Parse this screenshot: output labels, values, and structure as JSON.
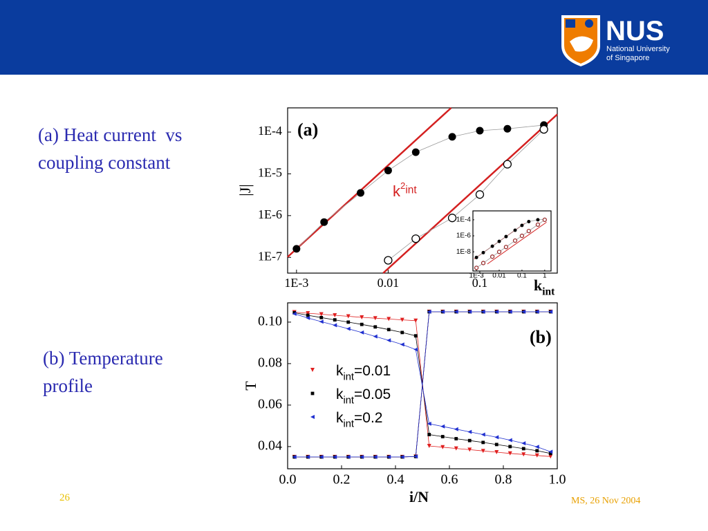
{
  "header": {
    "logo_text": "NUS",
    "logo_line1": "National University",
    "logo_line2": "of Singapore"
  },
  "slide": {
    "text_a_line1": "(a) Heat current  vs",
    "text_a_line2": "coupling constant",
    "text_b_line1": "(b) Temperature",
    "text_b_line2": "profile"
  },
  "footer": {
    "page": "26",
    "event": "MS, 26 Nov 2004"
  },
  "chart_data": [
    {
      "type": "line",
      "log_x": true,
      "log_y": true,
      "xlim": [
        0.0008,
        0.7
      ],
      "ylim": [
        4.2e-08,
        0.00038
      ],
      "xticks": [
        {
          "value": 0.001,
          "label": "1E-3"
        },
        0.01,
        0.1
      ],
      "yticks": [
        {
          "value": 1e-07,
          "label": "1E-7"
        },
        {
          "value": 1e-06,
          "label": "1E-6"
        },
        {
          "value": 1e-05,
          "label": "1E-5"
        },
        {
          "value": 0.0001,
          "label": "1E-4"
        }
      ],
      "ylabel": "|J|",
      "xlabel": {
        "base": "k",
        "sub": "int"
      },
      "annotation": "(a)",
      "fit_label": {
        "base": "k",
        "sup": "2",
        "sub": "int"
      },
      "x": [
        0.001,
        0.002,
        0.005,
        0.01,
        0.02,
        0.05,
        0.1,
        0.2,
        0.5
      ],
      "series": [
        {
          "color": "#000000",
          "line_color": "#999999",
          "marker": "filled-circle",
          "values": [
            1.6e-07,
            7e-07,
            3.5e-06,
            1.2e-05,
            3.3e-05,
            7.7e-05,
            0.000108,
            0.00012,
            0.000147
          ]
        },
        {
          "color": "#000000",
          "line_color": "#999999",
          "marker": "open-circle",
          "values": [
            null,
            null,
            null,
            8.5e-08,
            2.8e-07,
            8.8e-07,
            3.2e-06,
            1.7e-05,
            0.000116
          ]
        }
      ],
      "fit_lines": [
        {
          "color": "#d42020",
          "x": [
            0.0008,
            0.0487
          ],
          "values": [
            1.024e-07,
            0.00038
          ]
        },
        {
          "color": "#d42020",
          "x": [
            0.00882,
            0.7
          ],
          "values": [
            4.2e-08,
            0.000265
          ]
        }
      ]
    },
    {
      "type": "line",
      "log_x": true,
      "log_y": true,
      "xlim": [
        0.0007,
        1.9
      ],
      "ylim": [
        4e-11,
        0.0013
      ],
      "xticks": [
        {
          "value": 0.001,
          "label": "1E-3"
        },
        0.01,
        0.1,
        1
      ],
      "yticks": [
        {
          "value": 1e-08,
          "label": "1E-8"
        },
        {
          "value": 1e-06,
          "label": "1E-6"
        },
        {
          "value": 0.0001,
          "label": "1E-4"
        }
      ],
      "x": [
        0.001,
        0.002,
        0.005,
        0.01,
        0.02,
        0.05,
        0.1,
        0.2,
        0.5,
        1
      ],
      "series": [
        {
          "color": "#000000",
          "line_color": "#999999",
          "marker": "filled-circle",
          "values": [
            2e-09,
            8e-09,
            5e-08,
            2e-07,
            8e-07,
            5e-06,
            2e-05,
            6e-05,
            0.0001,
            0.00011
          ]
        },
        {
          "color": "#9a3030",
          "line_color": "#999999",
          "marker": "open-circle",
          "values": [
            1e-10,
            4e-10,
            2.5e-09,
            1e-08,
            4e-08,
            2.5e-07,
            1e-06,
            4e-06,
            2.5e-05,
            0.0001
          ]
        }
      ],
      "fit_lines": [
        {
          "color": "#d42020",
          "x": [
            0.0008,
            0.13
          ],
          "values": [
            1.3e-09,
            3.4e-05
          ]
        },
        {
          "color": "#d42020",
          "x": [
            0.003,
            1.2
          ],
          "values": [
            3e-10,
            5e-05
          ]
        }
      ]
    },
    {
      "type": "line",
      "xlim": [
        0,
        1
      ],
      "ylim": [
        0.0293,
        0.1093
      ],
      "xticks": [
        {
          "value": 0,
          "label": "0.0"
        },
        0.2,
        0.4,
        0.6,
        0.8,
        {
          "value": 1,
          "label": "1.0"
        }
      ],
      "yticks": [
        0.04,
        0.06,
        0.08,
        {
          "value": 0.1,
          "label": "0.10"
        }
      ],
      "ylabel": "T",
      "xlabel": "i/N",
      "annotation": "(b)",
      "x": [
        0.025,
        0.075,
        0.125,
        0.175,
        0.225,
        0.275,
        0.325,
        0.375,
        0.425,
        0.475,
        0.525,
        0.575,
        0.625,
        0.675,
        0.725,
        0.775,
        0.825,
        0.875,
        0.925,
        0.975
      ],
      "series": [
        {
          "name": {
            "base": "k",
            "sub": "int",
            "rest": "=0.01"
          },
          "color": "#e02020",
          "marker": "triangle-down",
          "values": [
            0.1048,
            0.1043,
            0.1038,
            0.1033,
            0.1028,
            0.1023,
            0.1019,
            0.1015,
            0.1011,
            0.1007,
            0.0403,
            0.0397,
            0.0391,
            0.0385,
            0.0379,
            0.0373,
            0.0367,
            0.0362,
            0.0357,
            0.0352
          ],
          "values_2": [
            0.035,
            0.035,
            0.035,
            0.035,
            0.035,
            0.035,
            0.035,
            0.035,
            0.035,
            0.0352,
            0.105,
            0.105,
            0.105,
            0.105,
            0.105,
            0.105,
            0.105,
            0.105,
            0.105,
            0.105
          ]
        },
        {
          "name": {
            "base": "k",
            "sub": "int",
            "rest": "=0.05"
          },
          "color": "#000000",
          "marker": "square",
          "values": [
            0.1045,
            0.1033,
            0.1022,
            0.1011,
            0.1,
            0.0989,
            0.0977,
            0.0964,
            0.095,
            0.0934,
            0.0458,
            0.0448,
            0.0438,
            0.0429,
            0.042,
            0.041,
            0.04,
            0.039,
            0.038,
            0.0367
          ],
          "values_2": [
            0.035,
            0.035,
            0.035,
            0.035,
            0.035,
            0.035,
            0.035,
            0.035,
            0.035,
            0.0352,
            0.105,
            0.105,
            0.105,
            0.105,
            0.105,
            0.105,
            0.105,
            0.105,
            0.105,
            0.105
          ]
        },
        {
          "name": {
            "base": "k",
            "sub": "int",
            "rest": "=0.2"
          },
          "color": "#2030d0",
          "marker": "triangle-left",
          "values": [
            0.104,
            0.102,
            0.1002,
            0.0985,
            0.0968,
            0.095,
            0.0931,
            0.0912,
            0.0892,
            0.0868,
            0.051,
            0.0497,
            0.0484,
            0.0471,
            0.0458,
            0.0445,
            0.0431,
            0.0416,
            0.0399,
            0.0375
          ],
          "values_2": [
            0.035,
            0.035,
            0.035,
            0.035,
            0.035,
            0.035,
            0.035,
            0.035,
            0.035,
            0.0352,
            0.105,
            0.105,
            0.105,
            0.105,
            0.105,
            0.105,
            0.105,
            0.105,
            0.105,
            0.105
          ]
        }
      ],
      "legend": "center-left"
    }
  ]
}
